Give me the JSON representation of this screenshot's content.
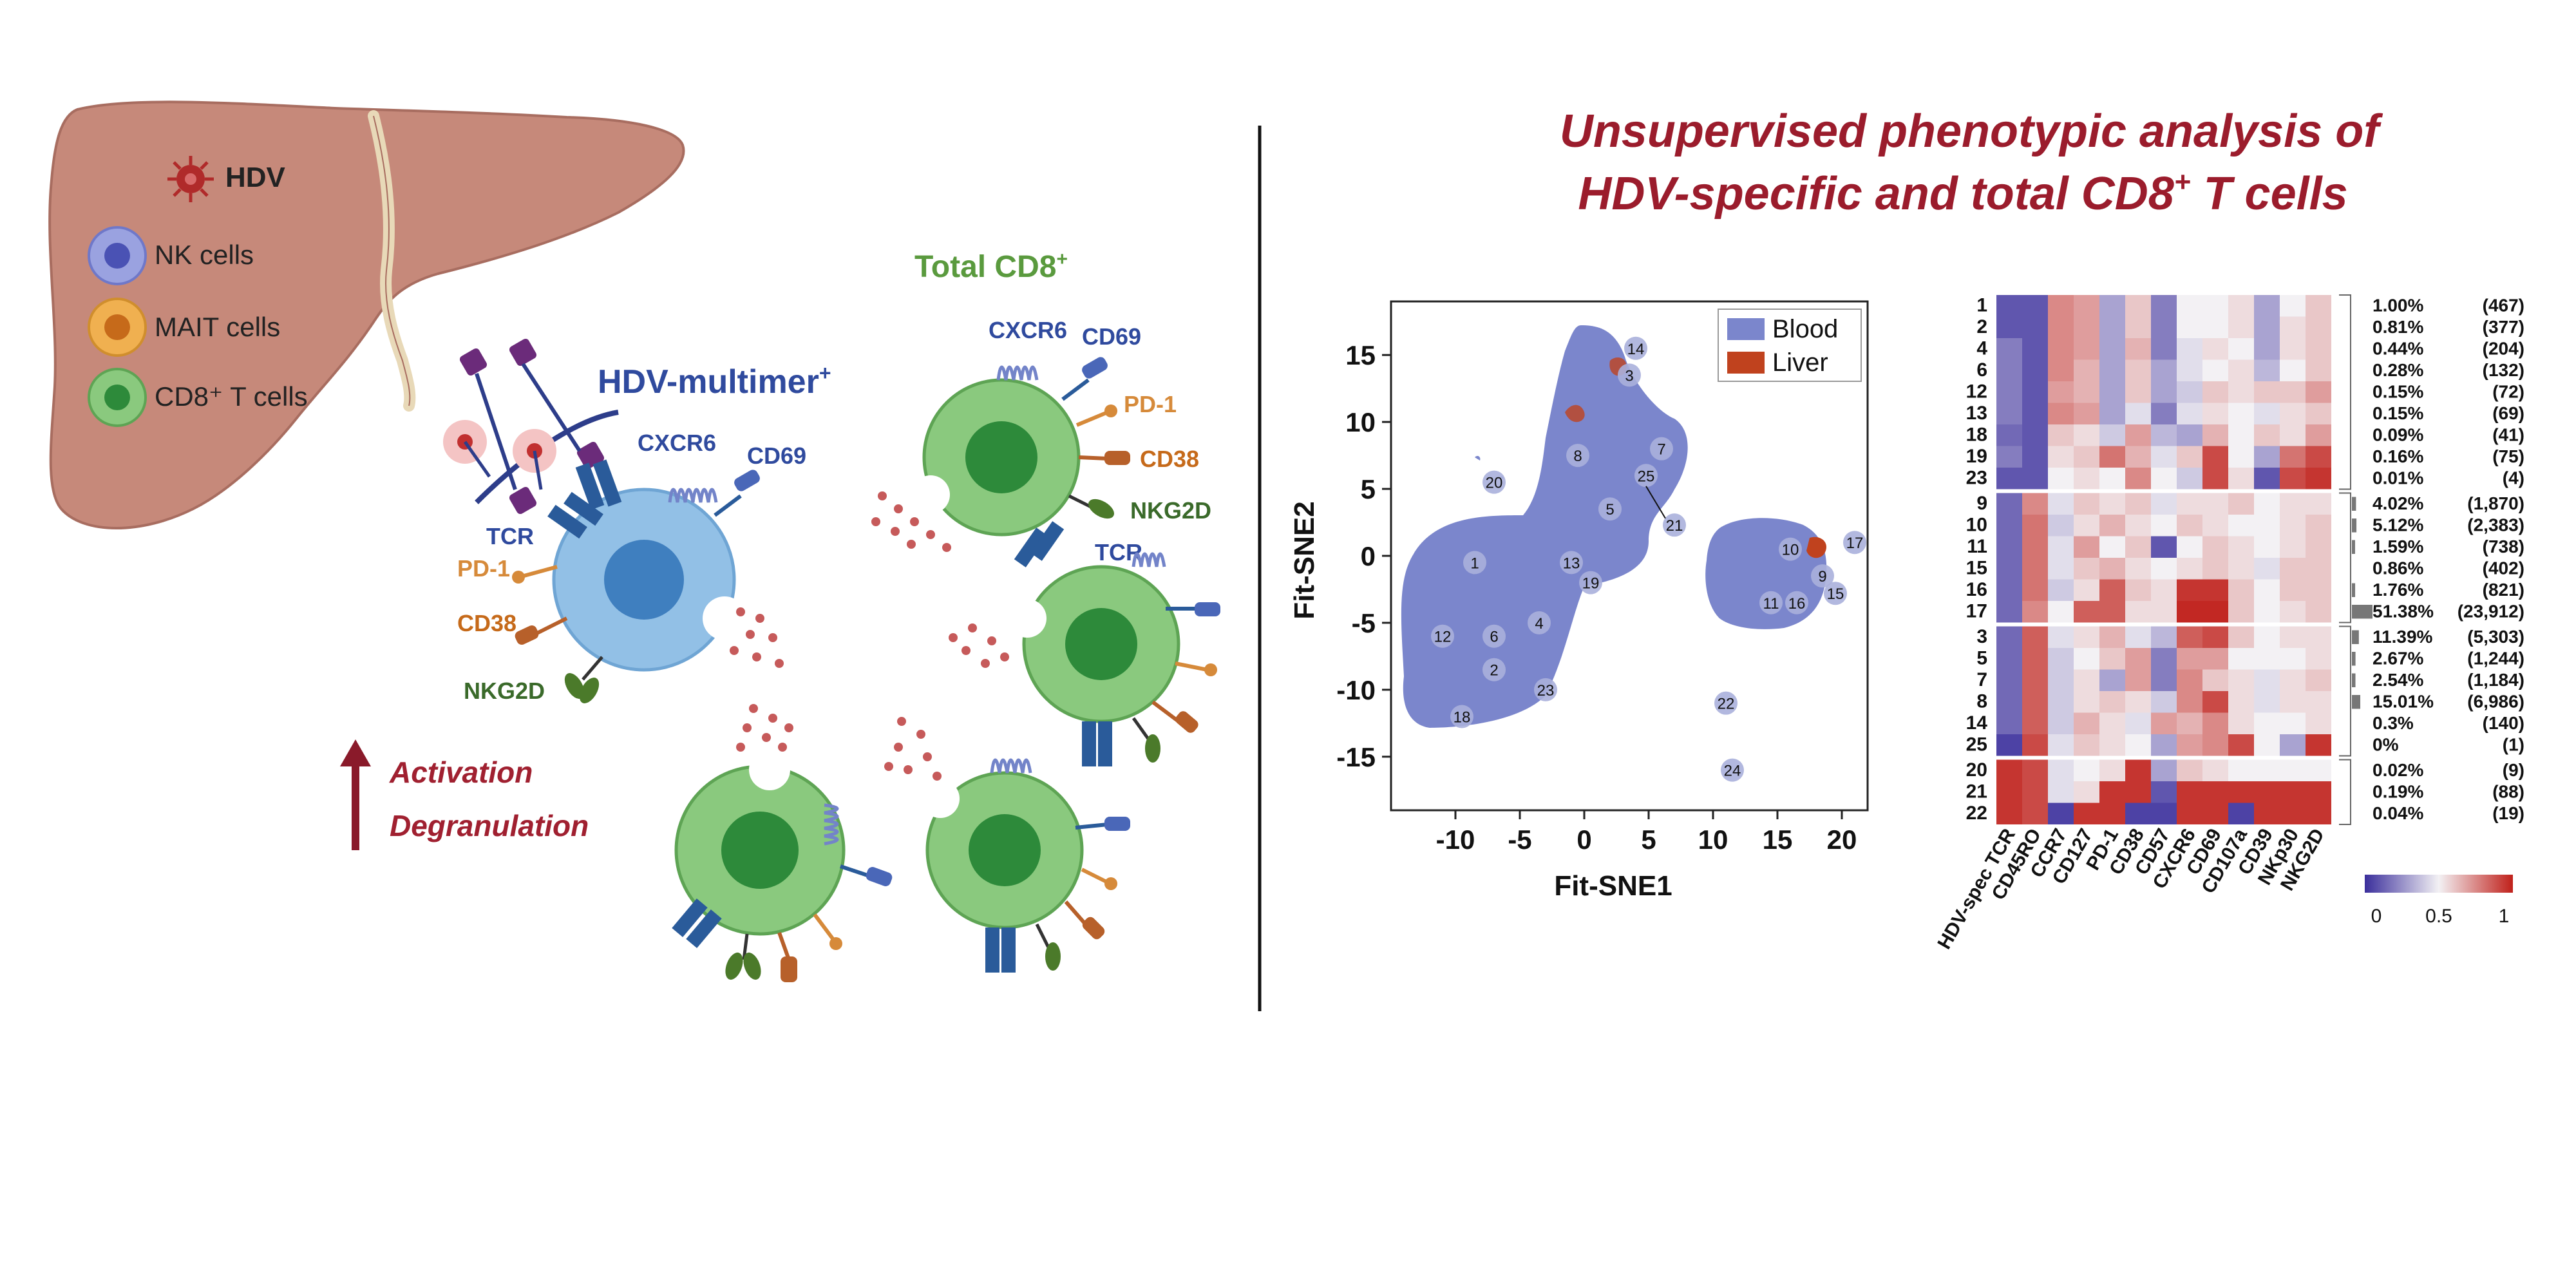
{
  "left_panel": {
    "legend": {
      "virus": "HDV",
      "nk": "NK cells",
      "mait": "MAIT cells",
      "cd8": "CD8⁺ T cells"
    },
    "hdv_multimer_title": "HDV-multimer",
    "hdv_multimer_sup": "+",
    "total_cd8_title": "Total CD8",
    "total_cd8_sup": "+",
    "markers": {
      "cxcr6": "CXCR6",
      "cd69": "CD69",
      "tcr": "TCR",
      "pd1": "PD-1",
      "cd38": "CD38",
      "nkg2d": "NKG2D"
    },
    "arrow_labels": [
      "Activation",
      "Degranulation"
    ]
  },
  "right_panel": {
    "title_line1": "Unsupervised phenotypic analysis of",
    "title_line2_prefix": "HDV-specific and total CD8",
    "title_line2_sup": "+",
    "title_line2_suffix": " T cells"
  },
  "tsne": {
    "xlabel": "Fit-SNE1",
    "ylabel": "Fit-SNE2",
    "xticks": [
      "-10",
      "-5",
      "0",
      "5",
      "10",
      "15",
      "20"
    ],
    "yticks": [
      "15",
      "10",
      "5",
      "0",
      "-5",
      "-10",
      "-15"
    ],
    "legend": [
      {
        "name": "Blood",
        "color": "#7b86cc"
      },
      {
        "name": "Liver",
        "color": "#c0421e"
      }
    ],
    "cluster_labels": [
      "1",
      "2",
      "3",
      "4",
      "5",
      "6",
      "7",
      "8",
      "9",
      "10",
      "11",
      "12",
      "13",
      "14",
      "15",
      "16",
      "17",
      "18",
      "19",
      "20",
      "21",
      "22",
      "23",
      "24",
      "25"
    ]
  },
  "chart_data": {
    "type": "heatmap",
    "columns": [
      "HDV-spec TCR",
      "CD45RO",
      "CCR7",
      "CD127",
      "PD-1",
      "CD38",
      "CD57",
      "CXCR6",
      "CD69",
      "CD107a",
      "CD39",
      "NKp30",
      "NKG2D"
    ],
    "rows": [
      {
        "cluster": "1",
        "percent": "1.00%",
        "count": "(467)",
        "values": [
          0.1,
          0.1,
          0.75,
          0.7,
          0.3,
          0.6,
          0.2,
          0.5,
          0.5,
          0.55,
          0.3,
          0.5,
          0.6
        ]
      },
      {
        "cluster": "2",
        "percent": "0.81%",
        "count": "(377)",
        "values": [
          0.1,
          0.1,
          0.75,
          0.7,
          0.3,
          0.6,
          0.2,
          0.5,
          0.5,
          0.55,
          0.3,
          0.55,
          0.6
        ]
      },
      {
        "cluster": "4",
        "percent": "0.44%",
        "count": "(204)",
        "values": [
          0.2,
          0.1,
          0.75,
          0.7,
          0.3,
          0.65,
          0.2,
          0.45,
          0.55,
          0.5,
          0.3,
          0.55,
          0.6
        ]
      },
      {
        "cluster": "6",
        "percent": "0.28%",
        "count": "(132)",
        "values": [
          0.2,
          0.1,
          0.75,
          0.65,
          0.3,
          0.6,
          0.3,
          0.45,
          0.5,
          0.55,
          0.35,
          0.5,
          0.6
        ]
      },
      {
        "cluster": "12",
        "percent": "0.15%",
        "count": "(72)",
        "values": [
          0.2,
          0.1,
          0.7,
          0.65,
          0.3,
          0.6,
          0.3,
          0.4,
          0.6,
          0.55,
          0.6,
          0.6,
          0.7
        ]
      },
      {
        "cluster": "13",
        "percent": "0.15%",
        "count": "(69)",
        "values": [
          0.2,
          0.1,
          0.75,
          0.7,
          0.3,
          0.45,
          0.2,
          0.45,
          0.55,
          0.5,
          0.45,
          0.55,
          0.6
        ]
      },
      {
        "cluster": "18",
        "percent": "0.09%",
        "count": "(41)",
        "values": [
          0.15,
          0.1,
          0.6,
          0.55,
          0.4,
          0.7,
          0.35,
          0.3,
          0.65,
          0.5,
          0.6,
          0.55,
          0.7
        ]
      },
      {
        "cluster": "19",
        "percent": "0.16%",
        "count": "(75)",
        "values": [
          0.2,
          0.1,
          0.55,
          0.6,
          0.8,
          0.65,
          0.45,
          0.6,
          0.9,
          0.5,
          0.3,
          0.8,
          0.9
        ]
      },
      {
        "cluster": "23",
        "percent": "0.01%",
        "count": "(4)",
        "values": [
          0.1,
          0.1,
          0.5,
          0.55,
          0.5,
          0.75,
          0.5,
          0.4,
          0.9,
          0.55,
          0.1,
          0.9,
          0.95
        ]
      },
      {
        "cluster": "9",
        "percent": "4.02%",
        "count": "(1,870)",
        "values": [
          0.15,
          0.75,
          0.45,
          0.6,
          0.55,
          0.6,
          0.45,
          0.55,
          0.55,
          0.6,
          0.5,
          0.55,
          0.55
        ]
      },
      {
        "cluster": "10",
        "percent": "5.12%",
        "count": "(2,383)",
        "values": [
          0.15,
          0.8,
          0.4,
          0.55,
          0.65,
          0.55,
          0.5,
          0.6,
          0.55,
          0.5,
          0.5,
          0.55,
          0.6
        ]
      },
      {
        "cluster": "11",
        "percent": "1.59%",
        "count": "(738)",
        "values": [
          0.15,
          0.8,
          0.45,
          0.7,
          0.5,
          0.6,
          0.1,
          0.5,
          0.6,
          0.55,
          0.5,
          0.55,
          0.6
        ]
      },
      {
        "cluster": "15",
        "percent": "0.86%",
        "count": "(402)",
        "values": [
          0.15,
          0.8,
          0.45,
          0.6,
          0.65,
          0.55,
          0.5,
          0.55,
          0.6,
          0.55,
          0.45,
          0.6,
          0.6
        ]
      },
      {
        "cluster": "16",
        "percent": "1.76%",
        "count": "(821)",
        "values": [
          0.15,
          0.8,
          0.4,
          0.55,
          0.85,
          0.6,
          0.55,
          0.95,
          0.95,
          0.6,
          0.5,
          0.6,
          0.6
        ]
      },
      {
        "cluster": "17",
        "percent": "51.38%",
        "count": "(23,912)",
        "values": [
          0.15,
          0.75,
          0.5,
          0.85,
          0.85,
          0.55,
          0.55,
          0.98,
          0.98,
          0.6,
          0.5,
          0.55,
          0.6
        ]
      },
      {
        "cluster": "3",
        "percent": "11.39%",
        "count": "(5,303)",
        "values": [
          0.15,
          0.85,
          0.45,
          0.55,
          0.65,
          0.45,
          0.35,
          0.85,
          0.9,
          0.6,
          0.5,
          0.55,
          0.55
        ]
      },
      {
        "cluster": "5",
        "percent": "2.67%",
        "count": "(1,244)",
        "values": [
          0.15,
          0.85,
          0.4,
          0.5,
          0.6,
          0.7,
          0.2,
          0.7,
          0.7,
          0.5,
          0.5,
          0.5,
          0.55
        ]
      },
      {
        "cluster": "7",
        "percent": "2.54%",
        "count": "(1,184)",
        "values": [
          0.15,
          0.85,
          0.4,
          0.55,
          0.3,
          0.7,
          0.2,
          0.75,
          0.6,
          0.55,
          0.45,
          0.55,
          0.6
        ]
      },
      {
        "cluster": "8",
        "percent": "15.01%",
        "count": "(6,986)",
        "values": [
          0.15,
          0.85,
          0.4,
          0.55,
          0.6,
          0.55,
          0.4,
          0.75,
          0.9,
          0.55,
          0.45,
          0.55,
          0.55
        ]
      },
      {
        "cluster": "14",
        "percent": "0.3%",
        "count": "(140)",
        "values": [
          0.15,
          0.85,
          0.4,
          0.65,
          0.55,
          0.45,
          0.7,
          0.65,
          0.75,
          0.55,
          0.5,
          0.5,
          0.55
        ]
      },
      {
        "cluster": "25",
        "percent": "0%",
        "count": "(1)",
        "values": [
          0.05,
          0.9,
          0.45,
          0.6,
          0.55,
          0.5,
          0.3,
          0.7,
          0.75,
          0.9,
          0.5,
          0.3,
          0.95
        ]
      },
      {
        "cluster": "20",
        "percent": "0.02%",
        "count": "(9)",
        "values": [
          0.95,
          0.9,
          0.45,
          0.5,
          0.55,
          0.95,
          0.3,
          0.6,
          0.55,
          0.5,
          0.5,
          0.5,
          0.5
        ]
      },
      {
        "cluster": "21",
        "percent": "0.19%",
        "count": "(88)",
        "values": [
          0.95,
          0.9,
          0.45,
          0.55,
          0.95,
          0.95,
          0.1,
          0.95,
          0.95,
          0.95,
          0.95,
          0.95,
          0.95
        ]
      },
      {
        "cluster": "22",
        "percent": "0.04%",
        "count": "(19)",
        "values": [
          0.95,
          0.9,
          0.05,
          0.95,
          0.95,
          0.05,
          0.05,
          0.95,
          0.95,
          0.05,
          0.95,
          0.95,
          0.95
        ]
      }
    ],
    "colorbar": {
      "ticks": [
        "0",
        "0.5",
        "1"
      ],
      "colors": [
        "#3b2f9c",
        "#f3f1f4",
        "#c0201a"
      ]
    }
  }
}
